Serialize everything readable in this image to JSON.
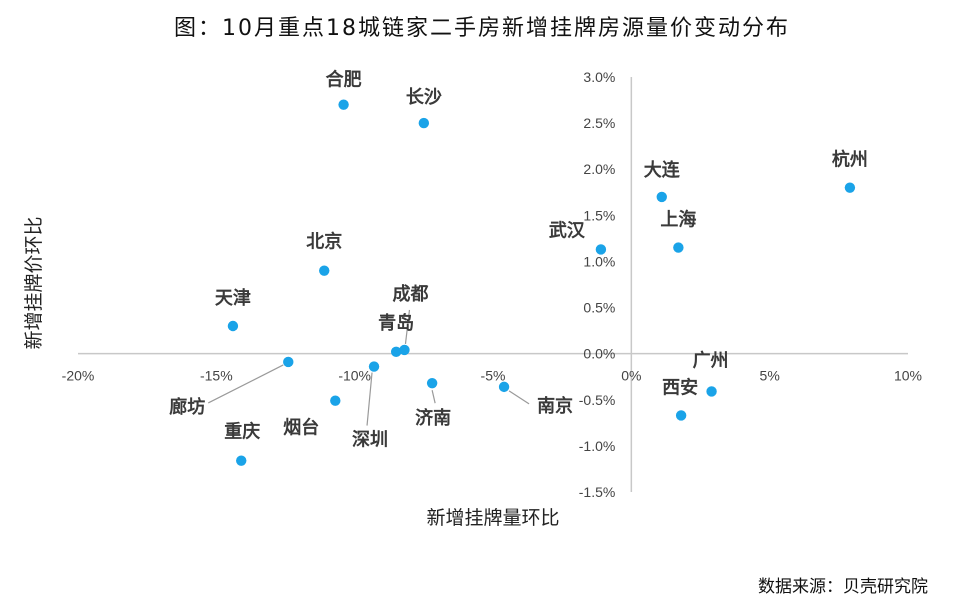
{
  "title": "图：10月重点18城链家二手房新增挂牌房源量价变动分布",
  "source": "数据来源：贝壳研究院",
  "chart_data": {
    "type": "scatter",
    "title": "图：10月重点18城链家二手房新增挂牌房源量价变动分布",
    "xlabel": "新增挂牌量环比",
    "ylabel": "新增挂牌价环比",
    "xlim": [
      -20,
      10
    ],
    "ylim": [
      -1.5,
      3.0
    ],
    "x_ticks": [
      "-20%",
      "-15%",
      "-10%",
      "-5%",
      "0%",
      "5%",
      "10%"
    ],
    "y_ticks": [
      "3.0%",
      "2.5%",
      "2.0%",
      "1.5%",
      "1.0%",
      "0.5%",
      "0.0%",
      "-0.5%",
      "-1.0%",
      "-1.5%"
    ],
    "grid": false,
    "color": "#1aa3e8",
    "points": [
      {
        "label": "合肥",
        "x": -10.4,
        "y": 2.7
      },
      {
        "label": "长沙",
        "x": -7.5,
        "y": 2.5
      },
      {
        "label": "杭州",
        "x": 7.9,
        "y": 1.8
      },
      {
        "label": "大连",
        "x": 1.1,
        "y": 1.7
      },
      {
        "label": "上海",
        "x": 1.7,
        "y": 1.15
      },
      {
        "label": "武汉",
        "x": -1.1,
        "y": 1.13
      },
      {
        "label": "北京",
        "x": -11.1,
        "y": 0.9
      },
      {
        "label": "天津",
        "x": -14.4,
        "y": 0.3
      },
      {
        "label": "成都",
        "x": -8.2,
        "y": 0.04
      },
      {
        "label": "青岛",
        "x": -8.5,
        "y": 0.02
      },
      {
        "label": "廊坊",
        "x": -12.4,
        "y": -0.09
      },
      {
        "label": "深圳",
        "x": -9.3,
        "y": -0.14
      },
      {
        "label": "济南",
        "x": -7.2,
        "y": -0.32
      },
      {
        "label": "南京",
        "x": -4.6,
        "y": -0.36
      },
      {
        "label": "广州",
        "x": 2.9,
        "y": -0.41
      },
      {
        "label": "烟台",
        "x": -10.7,
        "y": -0.51
      },
      {
        "label": "西安",
        "x": 1.8,
        "y": -0.67
      },
      {
        "label": "重庆",
        "x": -14.1,
        "y": -1.16
      }
    ]
  }
}
